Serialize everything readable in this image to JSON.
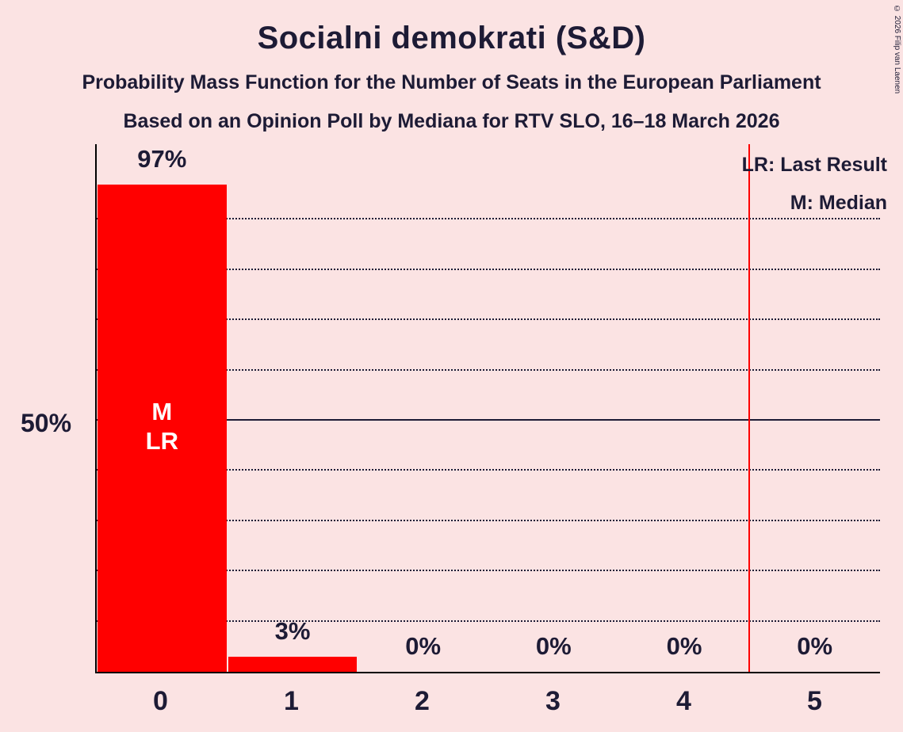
{
  "page": {
    "title": "Socialni demokrati (S&D)",
    "subtitle_line1": "Probability Mass Function for the Number of Seats in the European Parliament",
    "subtitle_line2": "Based on an Opinion Poll by Mediana for RTV SLO, 16–18 March 2026",
    "copyright": "© 2026 Filip van Laenen"
  },
  "legend": {
    "last_result": "LR: Last Result",
    "median": "M: Median"
  },
  "y_axis": {
    "label": "50%"
  },
  "chart_data": {
    "type": "bar",
    "title": "Socialni demokrati (S&D)",
    "categories": [
      "0",
      "1",
      "2",
      "3",
      "4",
      "5"
    ],
    "values": [
      97,
      3,
      0,
      0,
      0,
      0
    ],
    "value_labels": [
      "97%",
      "3%",
      "0%",
      "0%",
      "0%",
      "0%"
    ],
    "bar_annotations": [
      "M\nLR",
      "",
      "",
      "",
      "",
      ""
    ],
    "median_seats": 0,
    "last_result_seats": 0,
    "ylim": [
      0,
      100
    ],
    "gridlines_percent": [
      10,
      20,
      30,
      40,
      50,
      60,
      70,
      80,
      90
    ],
    "solid_gridline_percent": 50,
    "vertical_line_seats": 4.5,
    "grid": true,
    "legend_position": "top-right",
    "colors": {
      "background": "#FBE3E3",
      "bar": "#FF0000",
      "text": "#1D1B35",
      "axis": "#000000",
      "vertical_line": "#FF0000"
    }
  }
}
